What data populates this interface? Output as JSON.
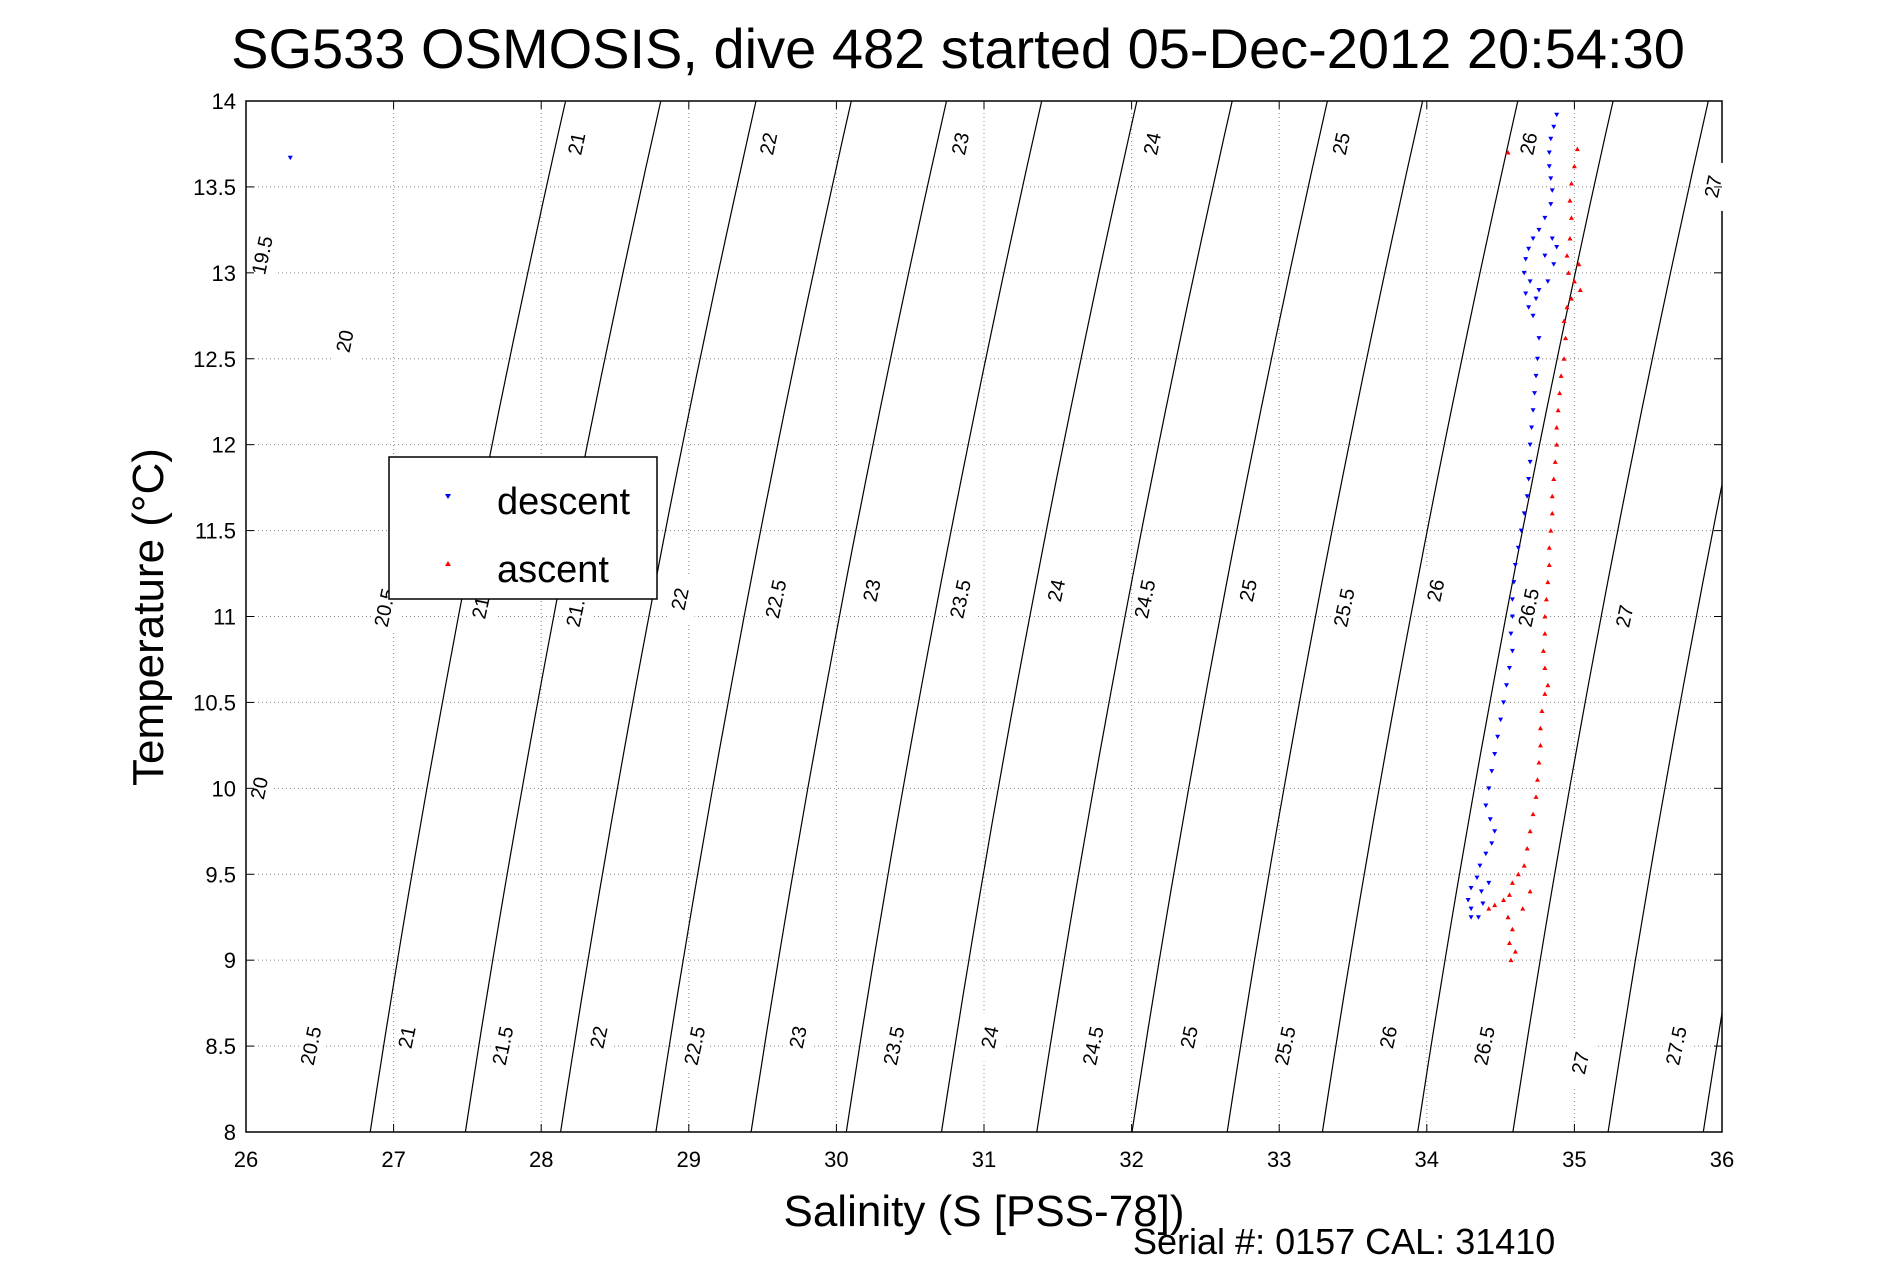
{
  "chart_data": {
    "type": "scatter",
    "title": "SG533 OSMOSIS, dive 482 started 05-Dec-2012 20:54:30",
    "xlabel": "Salinity (S [PSS-78])",
    "ylabel": "Temperature (°C)",
    "xlim": [
      26,
      36
    ],
    "ylim": [
      8,
      14
    ],
    "xticks": [
      "26",
      "27",
      "28",
      "29",
      "30",
      "31",
      "32",
      "33",
      "34",
      "35",
      "36"
    ],
    "yticks": [
      "8",
      "8.5",
      "9",
      "9.5",
      "10",
      "10.5",
      "11",
      "11.5",
      "12",
      "12.5",
      "13",
      "13.5",
      "14"
    ],
    "grid": true,
    "legend_position": "left",
    "footer": "Serial #: 0157  CAL: 31410",
    "colors": {
      "descent": "#0000ff",
      "ascent": "#ff0000",
      "contour": "#000000"
    },
    "density_contours": {
      "levels": [
        19.5,
        20,
        20.5,
        21,
        21.5,
        22,
        22.5,
        23,
        23.5,
        24,
        24.5,
        25,
        25.5,
        26,
        26.5,
        27,
        27.5
      ],
      "labels": [
        {
          "text": "19.5",
          "s": 26.12,
          "t": 13.1
        },
        {
          "text": "20",
          "s": 26.68,
          "t": 12.6
        },
        {
          "text": "21",
          "s": 28.25,
          "t": 13.75
        },
        {
          "text": "22",
          "s": 29.55,
          "t": 13.75
        },
        {
          "text": "23",
          "s": 30.85,
          "t": 13.75
        },
        {
          "text": "24",
          "s": 32.15,
          "t": 13.75
        },
        {
          "text": "25",
          "s": 33.43,
          "t": 13.75
        },
        {
          "text": "26",
          "s": 34.7,
          "t": 13.75
        },
        {
          "text": "27",
          "s": 35.95,
          "t": 13.5
        },
        {
          "text": "20.5",
          "s": 26.95,
          "t": 11.05
        },
        {
          "text": "21",
          "s": 27.6,
          "t": 11.05
        },
        {
          "text": "21.5",
          "s": 28.25,
          "t": 11.05
        },
        {
          "text": "22",
          "s": 28.95,
          "t": 11.1
        },
        {
          "text": "22.5",
          "s": 29.6,
          "t": 11.1
        },
        {
          "text": "23",
          "s": 30.25,
          "t": 11.15
        },
        {
          "text": "23.5",
          "s": 30.85,
          "t": 11.1
        },
        {
          "text": "24",
          "s": 31.5,
          "t": 11.15
        },
        {
          "text": "24.5",
          "s": 32.1,
          "t": 11.1
        },
        {
          "text": "25",
          "s": 32.8,
          "t": 11.15
        },
        {
          "text": "25.5",
          "s": 33.45,
          "t": 11.05
        },
        {
          "text": "26",
          "s": 34.07,
          "t": 11.15
        },
        {
          "text": "26.5",
          "s": 34.7,
          "t": 11.05
        },
        {
          "text": "27",
          "s": 35.35,
          "t": 11.0
        },
        {
          "text": "20",
          "s": 26.1,
          "t": 10.0
        },
        {
          "text": "20.5",
          "s": 26.45,
          "t": 8.5
        },
        {
          "text": "21",
          "s": 27.1,
          "t": 8.55
        },
        {
          "text": "21.5",
          "s": 27.75,
          "t": 8.5
        },
        {
          "text": "22",
          "s": 28.4,
          "t": 8.55
        },
        {
          "text": "22.5",
          "s": 29.05,
          "t": 8.5
        },
        {
          "text": "23",
          "s": 29.75,
          "t": 8.55
        },
        {
          "text": "23.5",
          "s": 30.4,
          "t": 8.5
        },
        {
          "text": "24",
          "s": 31.05,
          "t": 8.55
        },
        {
          "text": "24.5",
          "s": 31.75,
          "t": 8.5
        },
        {
          "text": "25",
          "s": 32.4,
          "t": 8.55
        },
        {
          "text": "25.5",
          "s": 33.05,
          "t": 8.5
        },
        {
          "text": "26",
          "s": 33.75,
          "t": 8.55
        },
        {
          "text": "26.5",
          "s": 34.4,
          "t": 8.5
        },
        {
          "text": "27",
          "s": 35.05,
          "t": 8.4
        },
        {
          "text": "27.5",
          "s": 35.7,
          "t": 8.5
        }
      ]
    },
    "series": [
      {
        "name": "descent",
        "marker": "triangle-down",
        "points": [
          [
            26.3,
            13.67
          ],
          [
            34.88,
            13.92
          ],
          [
            34.86,
            13.85
          ],
          [
            34.84,
            13.78
          ],
          [
            34.83,
            13.7
          ],
          [
            34.83,
            13.62
          ],
          [
            34.84,
            13.55
          ],
          [
            34.85,
            13.48
          ],
          [
            34.84,
            13.4
          ],
          [
            34.8,
            13.32
          ],
          [
            34.76,
            13.25
          ],
          [
            34.72,
            13.2
          ],
          [
            34.69,
            13.14
          ],
          [
            34.67,
            13.08
          ],
          [
            34.66,
            13.0
          ],
          [
            34.7,
            12.95
          ],
          [
            34.76,
            12.9
          ],
          [
            34.82,
            12.95
          ],
          [
            34.86,
            13.05
          ],
          [
            34.88,
            13.15
          ],
          [
            34.85,
            13.2
          ],
          [
            34.8,
            13.1
          ],
          [
            34.74,
            12.85
          ],
          [
            34.69,
            12.8
          ],
          [
            34.67,
            12.88
          ],
          [
            34.72,
            12.75
          ],
          [
            34.76,
            12.62
          ],
          [
            34.75,
            12.5
          ],
          [
            34.74,
            12.4
          ],
          [
            34.73,
            12.3
          ],
          [
            34.72,
            12.2
          ],
          [
            34.71,
            12.1
          ],
          [
            34.7,
            12.0
          ],
          [
            34.7,
            11.9
          ],
          [
            34.69,
            11.8
          ],
          [
            34.68,
            11.7
          ],
          [
            34.66,
            11.6
          ],
          [
            34.64,
            11.5
          ],
          [
            34.62,
            11.4
          ],
          [
            34.6,
            11.3
          ],
          [
            34.59,
            11.2
          ],
          [
            34.58,
            11.1
          ],
          [
            34.58,
            11.0
          ],
          [
            34.57,
            10.9
          ],
          [
            34.58,
            10.8
          ],
          [
            34.56,
            10.7
          ],
          [
            34.54,
            10.6
          ],
          [
            34.52,
            10.5
          ],
          [
            34.5,
            10.4
          ],
          [
            34.48,
            10.3
          ],
          [
            34.46,
            10.2
          ],
          [
            34.44,
            10.1
          ],
          [
            34.42,
            10.0
          ],
          [
            34.4,
            9.9
          ],
          [
            34.43,
            9.82
          ],
          [
            34.46,
            9.75
          ],
          [
            34.44,
            9.68
          ],
          [
            34.4,
            9.62
          ],
          [
            34.36,
            9.55
          ],
          [
            34.34,
            9.48
          ],
          [
            34.3,
            9.42
          ],
          [
            34.28,
            9.35
          ],
          [
            34.3,
            9.3
          ],
          [
            34.35,
            9.25
          ],
          [
            34.3,
            9.25
          ],
          [
            34.37,
            9.4
          ],
          [
            34.42,
            9.45
          ],
          [
            34.38,
            9.33
          ]
        ]
      },
      {
        "name": "ascent",
        "marker": "triangle-up",
        "points": [
          [
            34.55,
            13.7
          ],
          [
            35.02,
            13.72
          ],
          [
            35.0,
            13.62
          ],
          [
            34.98,
            13.52
          ],
          [
            34.97,
            13.42
          ],
          [
            34.98,
            13.32
          ],
          [
            34.97,
            13.2
          ],
          [
            34.95,
            13.1
          ],
          [
            34.96,
            13.0
          ],
          [
            35.0,
            12.95
          ],
          [
            35.03,
            13.05
          ],
          [
            35.04,
            12.9
          ],
          [
            34.98,
            12.85
          ],
          [
            34.95,
            12.8
          ],
          [
            34.93,
            12.72
          ],
          [
            34.94,
            12.62
          ],
          [
            34.93,
            12.5
          ],
          [
            34.91,
            12.4
          ],
          [
            34.9,
            12.3
          ],
          [
            34.89,
            12.2
          ],
          [
            34.88,
            12.1
          ],
          [
            34.88,
            12.0
          ],
          [
            34.87,
            11.9
          ],
          [
            34.86,
            11.8
          ],
          [
            34.85,
            11.7
          ],
          [
            34.85,
            11.6
          ],
          [
            34.84,
            11.5
          ],
          [
            34.83,
            11.4
          ],
          [
            34.83,
            11.3
          ],
          [
            34.82,
            11.2
          ],
          [
            34.81,
            11.1
          ],
          [
            34.8,
            11.0
          ],
          [
            34.8,
            10.9
          ],
          [
            34.79,
            10.8
          ],
          [
            34.8,
            10.7
          ],
          [
            34.82,
            10.6
          ],
          [
            34.8,
            10.55
          ],
          [
            34.78,
            10.45
          ],
          [
            34.77,
            10.35
          ],
          [
            34.77,
            10.25
          ],
          [
            34.76,
            10.15
          ],
          [
            34.75,
            10.05
          ],
          [
            34.74,
            9.95
          ],
          [
            34.72,
            9.85
          ],
          [
            34.7,
            9.75
          ],
          [
            34.68,
            9.65
          ],
          [
            34.66,
            9.55
          ],
          [
            34.62,
            9.5
          ],
          [
            34.58,
            9.45
          ],
          [
            34.56,
            9.38
          ],
          [
            34.52,
            9.35
          ],
          [
            34.46,
            9.32
          ],
          [
            34.42,
            9.3
          ],
          [
            34.55,
            9.25
          ],
          [
            34.58,
            9.18
          ],
          [
            34.56,
            9.1
          ],
          [
            34.57,
            9.0
          ],
          [
            34.6,
            9.05
          ],
          [
            34.65,
            9.3
          ],
          [
            34.7,
            9.4
          ]
        ]
      }
    ]
  }
}
